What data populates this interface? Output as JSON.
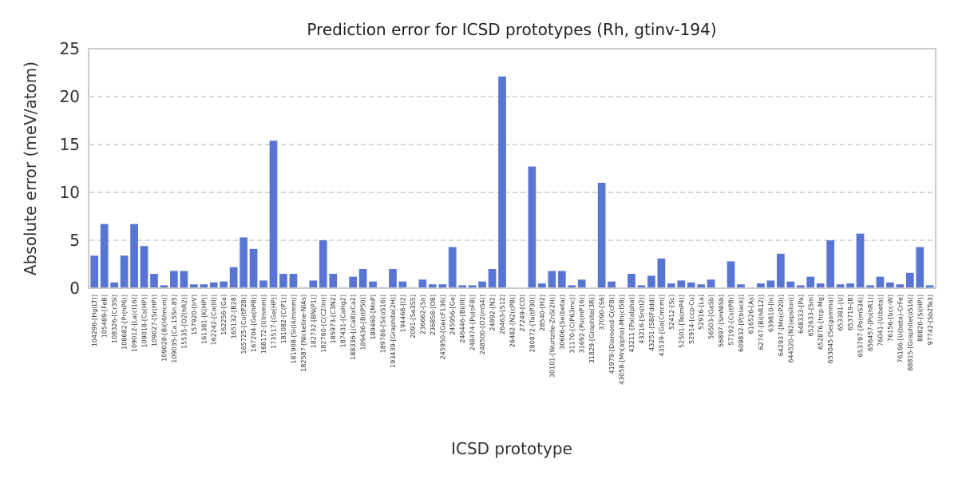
{
  "chart_data": {
    "type": "bar",
    "title": "Prediction error for ICSD prototypes (Rh, gtinv-194)",
    "xlabel": "ICSD prototype",
    "ylabel": "Absolute error (meV/atom)",
    "ylim": [
      0,
      25
    ],
    "yticks": [
      0,
      5,
      10,
      15,
      20,
      25
    ],
    "grid": "horizontal-dashed",
    "bar_color": "#5875d3",
    "categories": [
      "104296-[Hg(LT)]",
      "105489-[FeB]",
      "108326-[Cr3Si]",
      "108682-[Pr(hP6)]",
      "109012-[La(cl16)]",
      "109018-[Cs(HP)]",
      "109027-[Sr(HP)]",
      "109028-[Bi(I4/mcm)]",
      "109035-[Ca.15Sn.85]",
      "15535-[O2(hR2)]",
      "157920-[IrV]",
      "161381-[K(HP)]",
      "162242-[Ca(III)]",
      "162256-[Ga]",
      "165132-[B28]",
      "165725-[Co(tP28)]",
      "167204-[Ge(hP8)]",
      "168172-[I(Immm)]",
      "173517-[Ge(HP)]",
      "181082-[C(P1)]",
      "181908-[Si(I4/mmm)]",
      "182587-[Nickeline-NiAs]",
      "182732-[BN(P1)]",
      "182760-[C(C2/m)]",
      "185973-[C3N2]",
      "187431-[CaHg2]",
      "188336-[(Ca8)xCa2]",
      "189436-[B(tP50)]",
      "189460-[MnP]",
      "189786-[Si(oS16)]",
      "193439-[Graphite(2H)]",
      "194468-[I2]",
      "2091-[Se3S5]",
      "236662-[Sn]",
      "236858-[O8]",
      "245950-[Ge(cF136)]",
      "245956-[Ge]",
      "246446-[Bi(III)]",
      "248474-[Pu(oF8)]",
      "248500-[O2(mS4)]",
      "24892-[N2]",
      "26463-[S12]",
      "26482-[N2(cP8)]",
      "27249-[CO]",
      "280872-[Ta(tP30)]",
      "28540-[H2]",
      "30101-[Wurtzite-ZnS(2H)]",
      "30606-[Se(beta)]",
      "31170-[C(P63mc)]",
      "31692-[Pu(mP16)]",
      "31829-[Graphite(3R)]",
      "37090-[S6]",
      "41979-[Diamond-C(cF8)]",
      "43058-[Mn(alpha)-Mn(cI58)]",
      "43211-[Po(alpha)]",
      "43216-[Sn(tI2)]",
      "43251-[S8(Fddd)]",
      "43539-[Ga(Cmcm)]",
      "52412-[Sc]",
      "52501-[Te(mP4)]",
      "52914-[ccp-Cu]",
      "52916-[La]",
      "56503-[GaSb]",
      "56897-[SmNiSb]",
      "57192-[Cs(tP8)]",
      "609832-[P(black)]",
      "616526-[As]",
      "62747-[Bi(hR12)]",
      "639810-[In]",
      "642937-[Mn(cP20)]",
      "644520-[N2(epsilon)]",
      "648333-[Pa]",
      "652633-[Sm]",
      "652876-[hcp-Mg]",
      "653045-[Se(gamma)]",
      "653381-[U]",
      "653719-[B]",
      "653797-[Po(mS34)]",
      "656457-[Po(hR1)]",
      "76041-[U(beta)]",
      "76156-[bcc-W]",
      "76166-[U(beta)-CrFe]",
      "88815-[Graphite(oS16)]",
      "88820-[Si(HP)]",
      "97742-[Sb2Te3]"
    ],
    "values": [
      3.4,
      6.7,
      0.6,
      3.4,
      6.7,
      4.4,
      1.5,
      0.3,
      1.8,
      1.8,
      0.4,
      0.4,
      0.6,
      0.7,
      2.2,
      5.3,
      4.1,
      0.8,
      15.4,
      1.5,
      1.5,
      0.1,
      0.8,
      5.0,
      1.5,
      0.1,
      1.2,
      2.0,
      0.7,
      0.1,
      2.0,
      0.7,
      0.1,
      0.9,
      0.4,
      0.4,
      4.3,
      0.3,
      0.3,
      0.7,
      2.0,
      22.1,
      0.05,
      0.05,
      12.7,
      0.5,
      1.8,
      1.8,
      0.3,
      0.9,
      0.05,
      11.0,
      0.7,
      0.05,
      1.5,
      0.3,
      1.3,
      3.1,
      0.5,
      0.8,
      0.6,
      0.4,
      0.9,
      0.05,
      2.8,
      0.4,
      0.05,
      0.5,
      0.8,
      3.6,
      0.7,
      0.3,
      1.2,
      0.5,
      5.0,
      0.4,
      0.5,
      5.7,
      0.3,
      1.2,
      0.6,
      0.4,
      1.6,
      4.3,
      0.3
    ]
  }
}
